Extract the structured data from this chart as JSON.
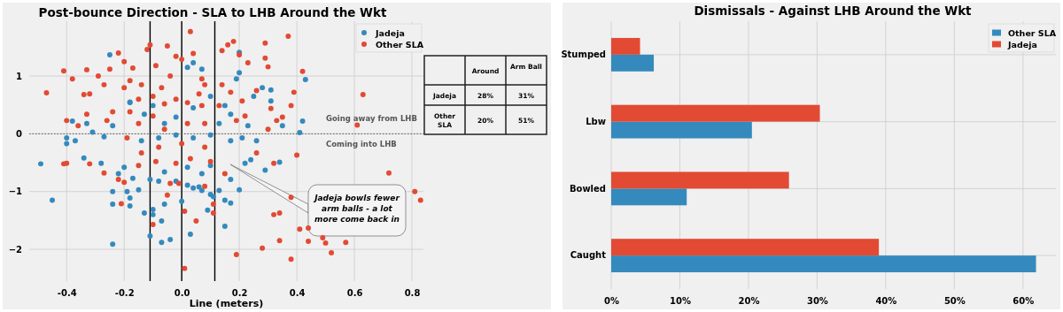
{
  "chart_data": [
    {
      "type": "scatter",
      "title": "Post-bounce Direction - SLA to LHB Around the Wkt",
      "xlabel": "Line (meters)",
      "xlim": [
        -0.53,
        0.84
      ],
      "ylim": [
        -2.55,
        1.95
      ],
      "xticks": [
        -0.4,
        -0.2,
        {
          "value": 0,
          "label": "0.0"
        },
        0.2,
        0.4,
        0.6,
        0.8
      ],
      "yticks": [
        {
          "value": -2,
          "label": "−2"
        },
        {
          "value": -1,
          "label": "−1"
        },
        0,
        1
      ],
      "grid": true,
      "legend": "top right",
      "marker": "circle",
      "ref_lines": [
        {
          "axis": "x",
          "value": -0.11,
          "color": "#000000",
          "line_style": "solid"
        },
        {
          "axis": "x",
          "value": 0,
          "color": "#000000",
          "line_style": "solid"
        },
        {
          "axis": "x",
          "value": 0.115,
          "color": "#000000",
          "line_style": "solid"
        },
        {
          "axis": "y",
          "value": 0,
          "color": "#555555",
          "line_style": "dotted"
        }
      ],
      "annotations": [
        "Going away from LHB",
        "Coming into LHB",
        "Jadeja bowls fewer arm balls - a lot more come back in"
      ],
      "series": [
        {
          "name": "Jadeja",
          "color": "#348abd",
          "x": [
            -0.25,
            0.04,
            0.07,
            0.02,
            0.2,
            0.2,
            0.19,
            0.43,
            0.31,
            0.28,
            0.31,
            0.42,
            0.41,
            0.35,
            0.25,
            0.15,
            0.17,
            0.13,
            0.1,
            0.04,
            -0.02,
            -0.06,
            -0.1,
            -0.13,
            -0.18,
            -0.24,
            -0.33,
            -0.38,
            -0.4,
            -0.4,
            -0.37,
            -0.31,
            -0.27,
            -0.14,
            -0.08,
            -0.02,
            0.04,
            0.1,
            0.17,
            0.21,
            0.26,
            0.23,
            -0.18,
            -0.49,
            -0.45,
            -0.24,
            -0.24,
            -0.24,
            -0.19,
            -0.18,
            -0.18,
            -0.15,
            -0.13,
            -0.11,
            -0.1,
            -0.1,
            -0.07,
            -0.07,
            -0.04,
            -0.06,
            0,
            0.03,
            0.04,
            0.06,
            0.07,
            0.09,
            0.1,
            0.11,
            0.15,
            0.17,
            0.15,
            0.2,
            0.13,
            -0.02,
            0.02,
            -0.08,
            -0.11,
            -0.17,
            -0.22,
            -0.34,
            -0.28,
            0.29,
            0.34,
            0.22,
            0.24,
            0.17,
            0.07,
            -0.06,
            0.02,
            0.1,
            -0.2
          ],
          "values": [
            1.37,
            1.23,
            1.12,
            1.15,
            1.41,
            1.06,
            0.95,
            0.94,
            0.76,
            0.8,
            0.57,
            0.22,
            0.02,
            0.14,
            0.65,
            0.49,
            0.34,
            0.18,
            0.65,
            0.45,
            0.29,
            0.18,
            0.49,
            0.34,
            0.54,
            0.14,
            0.18,
            0.22,
            -0.07,
            -0.17,
            -0.12,
            0.03,
            -0.05,
            -0.12,
            -0.07,
            -0.02,
            -0.07,
            -0.02,
            -0.12,
            -0.07,
            -0.12,
            0.14,
            0.55,
            -0.52,
            -1.15,
            -1.91,
            -1,
            -1.22,
            -1,
            -1.25,
            -1.11,
            -0.97,
            -1.37,
            -1.77,
            -1.31,
            -1.4,
            -1.51,
            -1.88,
            -1.83,
            -1.22,
            -1.17,
            -1.74,
            -0.94,
            -0.92,
            -0.98,
            -1.32,
            -1.05,
            -1.09,
            -1.15,
            -1.2,
            -1.6,
            -0.97,
            -0.98,
            -0.82,
            -0.89,
            -0.82,
            -0.79,
            -0.77,
            -0.69,
            -0.42,
            -0.51,
            -0.63,
            -0.49,
            -0.51,
            -0.45,
            -0.79,
            -0.69,
            -0.66,
            -0.58,
            -0.55,
            -0.58
          ]
        },
        {
          "name": "Other SLA",
          "color": "#e24a33",
          "x": [
            -0.47,
            -0.41,
            -0.38,
            0.03,
            0.37,
            0.63,
            0.42,
            -0.22,
            0.29,
            0.18,
            -0.11,
            -0.05,
            0.61,
            0.39,
            0.38,
            0.72,
            0.81,
            0.83,
            0.38,
            0.32,
            0.34,
            0.41,
            0.44,
            0.44,
            0.49,
            0.5,
            0.52,
            0.57,
            0.34,
            0.28,
            0.38,
            0.19,
            0.01,
            -0.1,
            0.01,
            0.05,
            0.11,
            0.11,
            -0.05,
            -0.04,
            -0.01,
            0.08,
            0.4,
            0.32,
            -0.21,
            -0.27,
            -0.41,
            -0.4,
            -0.32,
            -0.22,
            -0.2,
            0.15,
            -0.25,
            -0.2,
            -0.17,
            -0.12,
            -0.09,
            -0.02,
            0,
            0.04,
            0.07,
            0.14,
            0.16,
            0.2,
            0.23,
            0.29,
            0.3,
            -0.33,
            -0.29,
            -0.27,
            -0.32,
            -0.34,
            -0.4,
            -0.33,
            -0.36,
            -0.26,
            -0.24,
            -0.2,
            -0.18,
            -0.14,
            -0.15,
            -0.18,
            -0.1,
            -0.07,
            -0.04,
            -0.06,
            -0.02,
            0.02,
            0.06,
            0.08,
            0.07,
            0.13,
            0.14,
            0.17,
            0.21,
            0.22,
            0.19,
            0.26,
            0.31,
            0.33,
            0.35,
            0.3,
            0.02,
            -0.1,
            -0.15,
            0.08,
            -0.06,
            -0.19,
            -0.08,
            0,
            0.08,
            -0.14,
            -0.02,
            0.03,
            0.1,
            -0.09,
            -0.15,
            0.26
          ],
          "values": [
            0.71,
            1.09,
            0.95,
            1.77,
            1.69,
            0.68,
            1.08,
            1.4,
            1.57,
            1.6,
            1.54,
            1.52,
            0.15,
            0.72,
            0.49,
            -0.68,
            -1,
            -1.15,
            -1.1,
            -1.4,
            -1.37,
            -1.65,
            -1.63,
            -1.86,
            -1.8,
            -1.89,
            -2.06,
            -1.88,
            -1.85,
            -1.98,
            -2.17,
            -2.09,
            -2.33,
            -1.57,
            -1.34,
            -1.51,
            -1.37,
            -1.22,
            -1.06,
            -0.86,
            -0.86,
            -0.91,
            -0.37,
            -0.51,
            -1.21,
            -0.68,
            -0.52,
            -0.51,
            -0.52,
            -0.79,
            -0.84,
            -0.69,
            1.12,
            1.25,
            1.14,
            1.46,
            1.18,
            1.34,
            1.29,
            1.39,
            0.95,
            1.44,
            1.54,
            1.37,
            1.23,
            1.31,
            1.16,
            1.11,
            1,
            0.85,
            0.69,
            0.68,
            0.23,
            0.34,
            0.14,
            0.23,
            0.38,
            0.8,
            0.92,
            0.85,
            0.6,
            0.38,
            0.65,
            0.8,
            1,
            0.52,
            0.6,
            0.54,
            0.69,
            0.85,
            0.49,
            0.49,
            0.85,
            0.72,
            0.57,
            0.31,
            0.23,
            0.75,
            0.44,
            0.23,
            0.29,
            0.08,
            0.18,
            0.31,
            0.18,
            0.18,
            0.08,
            -0.07,
            -0.23,
            -0.17,
            -0.23,
            -0.33,
            -0.51,
            -0.43,
            -0.48,
            -0.48,
            -0.55,
            -0.33
          ]
        }
      ]
    },
    {
      "type": "other",
      "annotations": [
        "Around",
        "Arm Ball",
        "Jadeja",
        "28%",
        "31%",
        "Other SLA",
        "20%",
        "51%"
      ]
    },
    {
      "type": "bar",
      "orientation": "horizontal",
      "title": "Dismissals - Against LHB Around the Wkt",
      "categories": [
        "Stumped",
        "Lbw",
        "Bowled",
        "Caught"
      ],
      "xlim": [
        0,
        64.8
      ],
      "xticks": [
        {
          "value": 0,
          "label": "0%"
        },
        {
          "value": 10,
          "label": "10%"
        },
        {
          "value": 20,
          "label": "20%"
        },
        {
          "value": 30,
          "label": "30%"
        },
        {
          "value": 40,
          "label": "40%"
        },
        {
          "value": 50,
          "label": "50%"
        },
        {
          "value": 60,
          "label": "60%"
        }
      ],
      "grid": true,
      "legend": "top right",
      "series": [
        {
          "name": "Other SLA",
          "color": "#348abd",
          "values": [
            6.2,
            20.5,
            11.0,
            61.9
          ]
        },
        {
          "name": "Jadeja",
          "color": "#e24a33",
          "values": [
            4.2,
            30.4,
            25.9,
            39.0
          ]
        }
      ]
    }
  ]
}
